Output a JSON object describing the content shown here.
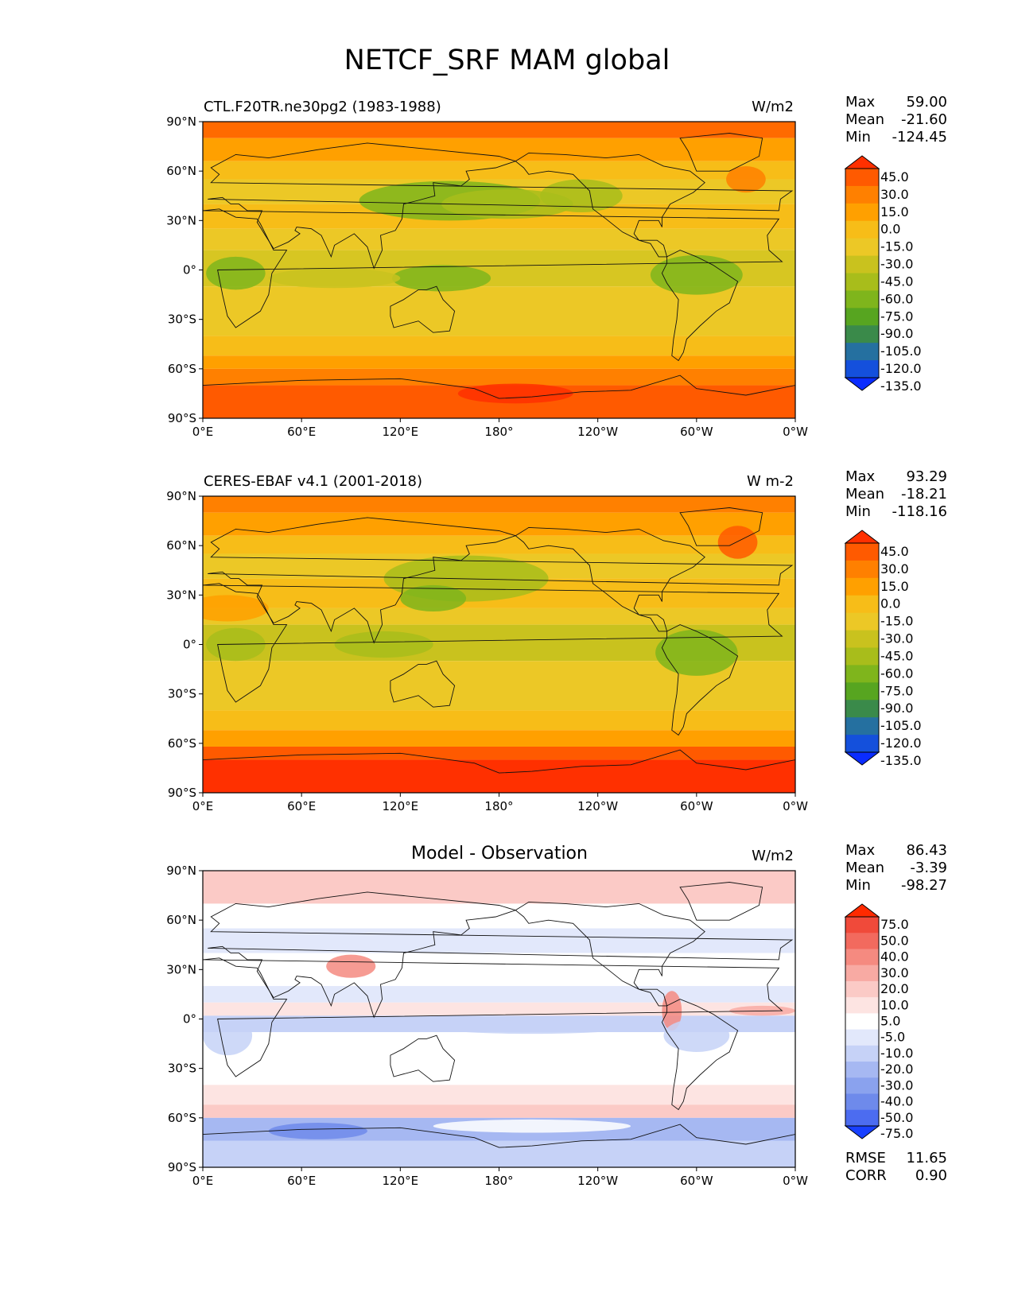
{
  "figure_title": "NETCF_SRF MAM global",
  "lat_ticks": [
    "90°N",
    "60°N",
    "30°N",
    "0°",
    "30°S",
    "60°S",
    "90°S"
  ],
  "lon_ticks": [
    "0°E",
    "60°E",
    "120°E",
    "180°",
    "120°W",
    "60°W",
    "0°W"
  ],
  "panels": [
    {
      "left_title": "CTL.F20TR.ne30pg2 (1983-1988)",
      "center_title": "",
      "units": "W/m2",
      "stats": [
        {
          "label": "Max",
          "value": "59.00"
        },
        {
          "label": "Mean",
          "value": "-21.60"
        },
        {
          "label": "Min",
          "value": "-124.45"
        }
      ],
      "colorbar": {
        "levels": [
          "45.0",
          "30.0",
          "15.0",
          "0.0",
          "-15.0",
          "-30.0",
          "-45.0",
          "-60.0",
          "-75.0",
          "-90.0",
          "-105.0",
          "-120.0",
          "-135.0"
        ],
        "colors": [
          "#ff3000",
          "#ff5a00",
          "#ff8000",
          "#ffa000",
          "#f7bd18",
          "#ecc826",
          "#c9c21e",
          "#a8bd1b",
          "#7fb51c",
          "#57a520",
          "#3a8a4a",
          "#2570a0",
          "#1450dc",
          "#0a2cff"
        ]
      }
    },
    {
      "left_title": "CERES-EBAF v4.1 (2001-2018)",
      "center_title": "",
      "units": "W m-2",
      "stats": [
        {
          "label": "Max",
          "value": "93.29"
        },
        {
          "label": "Mean",
          "value": "-18.21"
        },
        {
          "label": "Min",
          "value": "-118.16"
        }
      ],
      "colorbar": {
        "levels": [
          "45.0",
          "30.0",
          "15.0",
          "0.0",
          "-15.0",
          "-30.0",
          "-45.0",
          "-60.0",
          "-75.0",
          "-90.0",
          "-105.0",
          "-120.0",
          "-135.0"
        ],
        "colors": [
          "#ff3000",
          "#ff5a00",
          "#ff8000",
          "#ffa000",
          "#f7bd18",
          "#ecc826",
          "#c9c21e",
          "#a8bd1b",
          "#7fb51c",
          "#57a520",
          "#3a8a4a",
          "#2570a0",
          "#1450dc",
          "#0a2cff"
        ]
      }
    },
    {
      "left_title": "",
      "center_title": "Model - Observation",
      "units": "W/m2",
      "stats": [
        {
          "label": "Max",
          "value": "86.43"
        },
        {
          "label": "Mean",
          "value": "-3.39"
        },
        {
          "label": "Min",
          "value": "-98.27"
        }
      ],
      "extra_stats": [
        {
          "label": "RMSE",
          "value": "11.65"
        },
        {
          "label": "CORR",
          "value": "0.90"
        }
      ],
      "colorbar": {
        "levels": [
          "75.0",
          "50.0",
          "40.0",
          "30.0",
          "20.0",
          "10.0",
          "5.0",
          "-5.0",
          "-10.0",
          "-20.0",
          "-30.0",
          "-40.0",
          "-50.0",
          "-75.0"
        ],
        "colors": [
          "#ff2a00",
          "#f04a3a",
          "#f26a5e",
          "#f58a80",
          "#f8aaa3",
          "#fbcac6",
          "#fde4e2",
          "#ffffff",
          "#e2e8fb",
          "#c6d2f7",
          "#a6b8f2",
          "#8aa2ee",
          "#6e8aeb",
          "#4c6cf0",
          "#1840ff"
        ]
      }
    }
  ]
}
